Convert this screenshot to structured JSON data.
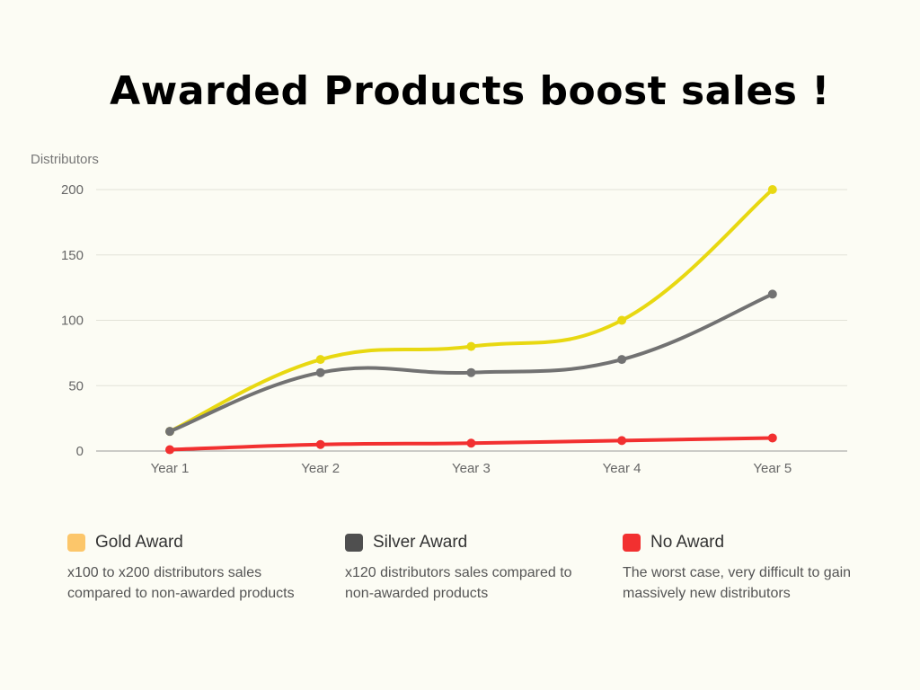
{
  "title": "Awarded Products boost sales !",
  "chart_data": {
    "type": "line",
    "ylabel": "Distributors",
    "xlabel": "",
    "categories": [
      "Year 1",
      "Year 2",
      "Year 3",
      "Year 4",
      "Year 5"
    ],
    "ylim": [
      0,
      200
    ],
    "yticks": [
      0,
      50,
      100,
      150,
      200
    ],
    "grid": true,
    "series": [
      {
        "name": "Gold Award",
        "color": "#e8d811",
        "values": [
          15,
          70,
          80,
          100,
          200
        ]
      },
      {
        "name": "Silver Award",
        "color": "#727272",
        "values": [
          15,
          60,
          60,
          70,
          120
        ]
      },
      {
        "name": "No Award",
        "color": "#f23030",
        "values": [
          1,
          5,
          6,
          8,
          10
        ]
      }
    ]
  },
  "legend": [
    {
      "name": "Gold Award",
      "color": "#fcc66a",
      "description": "x100 to x200 distributors sales compared to non-awarded products"
    },
    {
      "name": "Silver Award",
      "color": "#4f4f4f",
      "description": "x120 distributors sales compared to non-awarded products"
    },
    {
      "name": "No Award",
      "color": "#f23030",
      "description": "The worst case, very difficult to gain massively new distributors"
    }
  ]
}
